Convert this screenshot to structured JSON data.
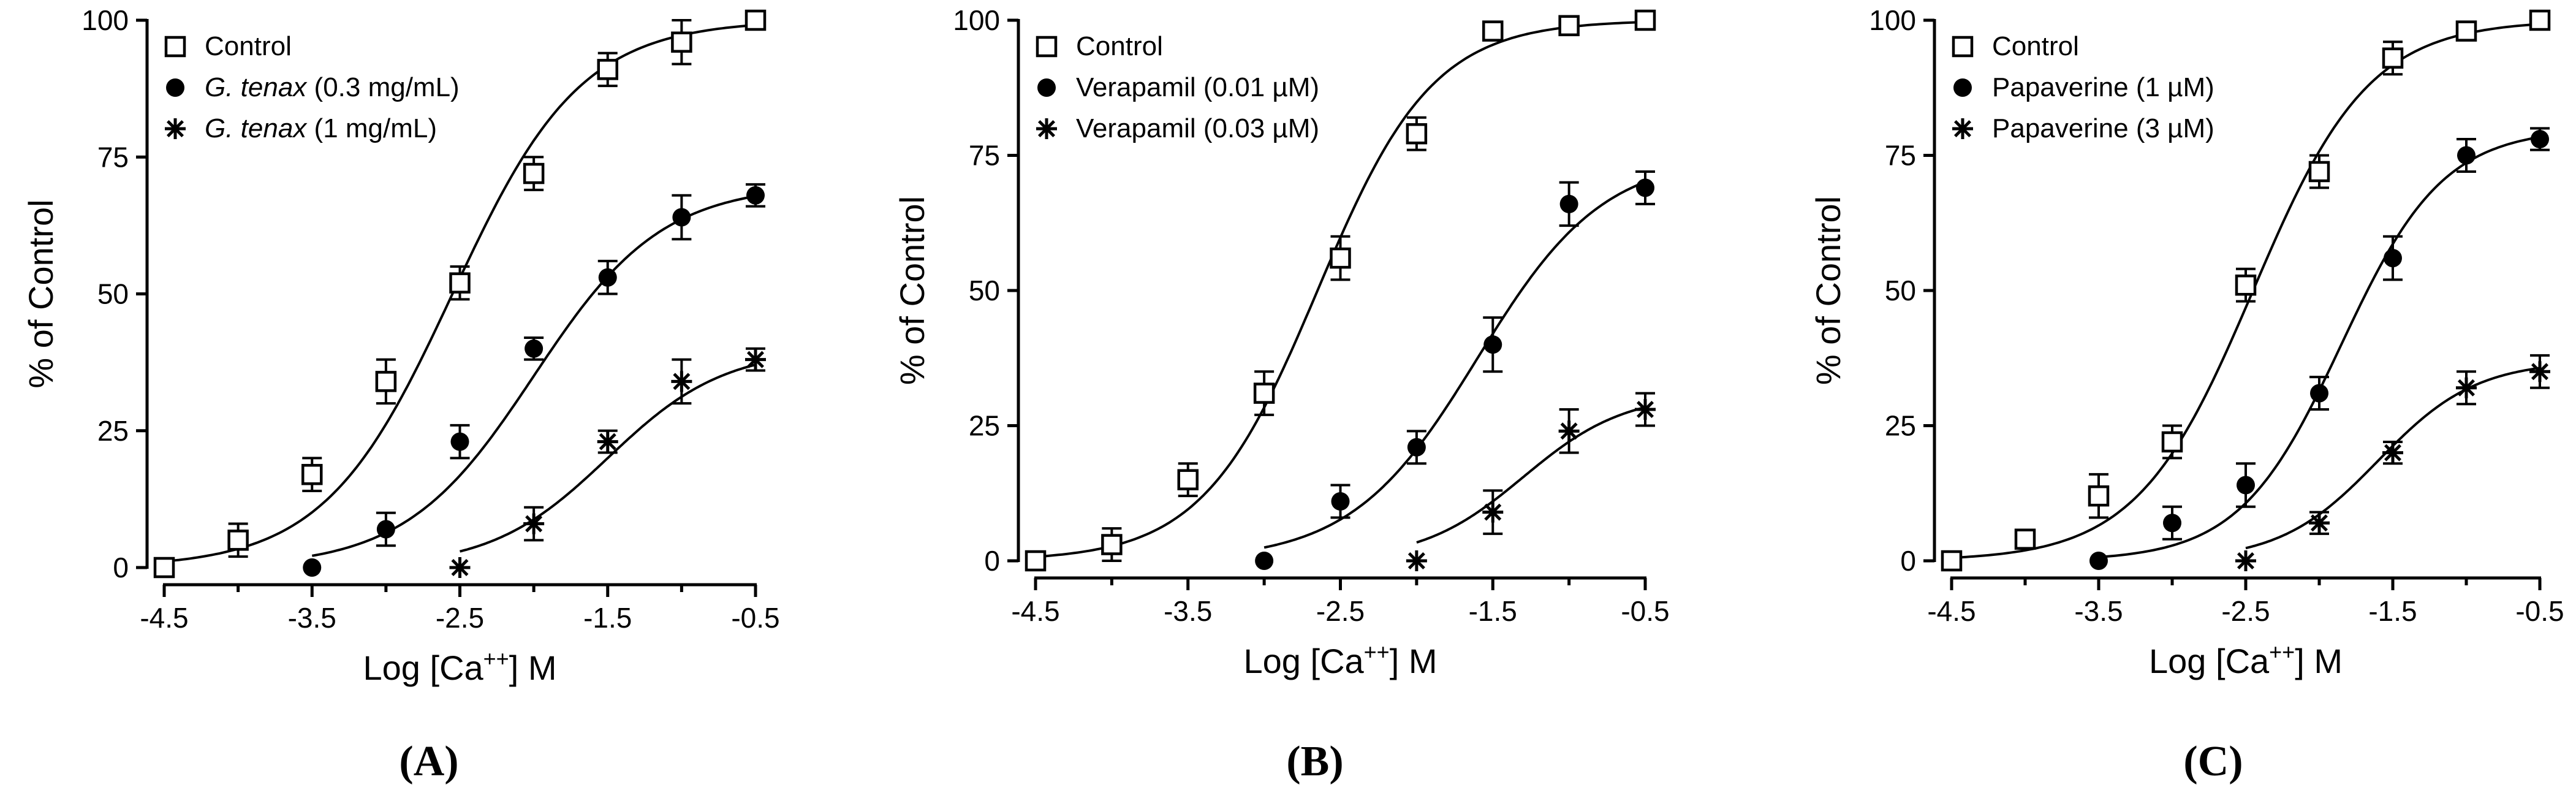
{
  "chart_data": [
    {
      "type": "scatter",
      "panel_label": "(A)",
      "xlabel": "Log [Ca",
      "xlabel_sup": "++",
      "xlabel_suffix": "] M",
      "ylabel": "% of Control",
      "xlim": [
        -4.5,
        -0.5
      ],
      "ylim": [
        0,
        100
      ],
      "xticks": [
        -4.5,
        -3.5,
        -2.5,
        -1.5,
        -0.5
      ],
      "yticks": [
        0,
        25,
        50,
        75,
        100
      ],
      "legend_position": "top-left",
      "series": [
        {
          "name": "Control",
          "legend_parts": [
            [
              "Control",
              ""
            ]
          ],
          "marker": "open-square",
          "x": [
            -4.5,
            -4,
            -3.5,
            -3,
            -2.5,
            -2,
            -1.5,
            -1,
            -0.5
          ],
          "y": [
            0,
            5,
            17,
            34,
            52,
            72,
            91,
            96,
            100
          ],
          "err": [
            0,
            3,
            3,
            4,
            3,
            3,
            3,
            4,
            0
          ],
          "fit": {
            "top": 100,
            "logec50": -2.55,
            "hill": 1.0
          }
        },
        {
          "name": "G. tenax (0.3 mg/mL)",
          "legend_parts": [
            [
              "G. tenax",
              "italic"
            ],
            [
              " (0.3 mg/mL)",
              ""
            ]
          ],
          "marker": "filled-circle",
          "x": [
            -3.5,
            -3,
            -2.5,
            -2,
            -1.5,
            -1,
            -0.5
          ],
          "y": [
            0,
            7,
            23,
            40,
            53,
            64,
            68
          ],
          "err": [
            0,
            3,
            3,
            2,
            3,
            4,
            2
          ],
          "fit": {
            "top": 70,
            "logec50": -2.0,
            "hill": 1.0
          }
        },
        {
          "name": "G. tenax (1 mg/mL)",
          "legend_parts": [
            [
              "G. tenax",
              "italic"
            ],
            [
              " (1 mg/mL)",
              ""
            ]
          ],
          "marker": "asterisk",
          "x": [
            -2.5,
            -2,
            -1.5,
            -1,
            -0.5
          ],
          "y": [
            0,
            8,
            23,
            34,
            38
          ],
          "err": [
            0,
            3,
            2,
            4,
            2
          ],
          "fit": {
            "top": 40,
            "logec50": -1.5,
            "hill": 1.1
          }
        }
      ]
    },
    {
      "type": "scatter",
      "panel_label": "(B)",
      "xlabel": "Log [Ca",
      "xlabel_sup": "++",
      "xlabel_suffix": "] M",
      "ylabel": "% of Control",
      "xlim": [
        -4.5,
        -0.5
      ],
      "ylim": [
        0,
        100
      ],
      "xticks": [
        -4.5,
        -3.5,
        -2.5,
        -1.5,
        -0.5
      ],
      "yticks": [
        0,
        25,
        50,
        75,
        100
      ],
      "legend_position": "top-left",
      "series": [
        {
          "name": "Control",
          "legend_parts": [
            [
              "Control",
              ""
            ]
          ],
          "marker": "open-square",
          "x": [
            -4.5,
            -4,
            -3.5,
            -3,
            -2.5,
            -2,
            -1.5,
            -1,
            -0.5
          ],
          "y": [
            0,
            3,
            15,
            31,
            56,
            79,
            98,
            99,
            100
          ],
          "err": [
            0,
            3,
            3,
            4,
            4,
            3,
            0,
            0,
            0
          ],
          "fit": {
            "top": 100,
            "logec50": -2.65,
            "hill": 1.15
          }
        },
        {
          "name": "Verapamil (0.01 µM)",
          "legend_parts": [
            [
              "Verapamil (0.01 µM)",
              ""
            ]
          ],
          "marker": "filled-circle",
          "x": [
            -3,
            -2.5,
            -2,
            -1.5,
            -1,
            -0.5
          ],
          "y": [
            0,
            11,
            21,
            40,
            66,
            69
          ],
          "err": [
            0,
            3,
            3,
            5,
            4,
            3
          ],
          "fit": {
            "top": 75,
            "logec50": -1.6,
            "hill": 1.05
          }
        },
        {
          "name": "Verapamil (0.03 µM)",
          "legend_parts": [
            [
              "Verapamil (0.03 µM)",
              ""
            ]
          ],
          "marker": "asterisk",
          "x": [
            -2,
            -1.5,
            -1,
            -0.5
          ],
          "y": [
            0,
            9,
            24,
            28
          ],
          "err": [
            0,
            4,
            4,
            3
          ],
          "fit": {
            "top": 31,
            "logec50": -1.3,
            "hill": 1.3
          }
        }
      ]
    },
    {
      "type": "scatter",
      "panel_label": "(C)",
      "xlabel": "Log [Ca",
      "xlabel_sup": "++",
      "xlabel_suffix": "] M",
      "ylabel": "% of Control",
      "xlim": [
        -4.5,
        -0.5
      ],
      "ylim": [
        0,
        100
      ],
      "xticks": [
        -4.5,
        -3.5,
        -2.5,
        -1.5,
        -0.5
      ],
      "yticks": [
        0,
        25,
        50,
        75,
        100
      ],
      "legend_position": "top-left",
      "series": [
        {
          "name": "Control",
          "legend_parts": [
            [
              "Control",
              ""
            ]
          ],
          "marker": "open-square",
          "x": [
            -4.5,
            -4,
            -3.5,
            -3,
            -2.5,
            -2,
            -1.5,
            -1,
            -0.5
          ],
          "y": [
            0,
            4,
            12,
            22,
            51,
            72,
            93,
            98,
            100
          ],
          "err": [
            0,
            0,
            4,
            3,
            3,
            3,
            3,
            0,
            0
          ],
          "fit": {
            "top": 100,
            "logec50": -2.45,
            "hill": 1.1
          }
        },
        {
          "name": "Papaverine (1 µM)",
          "legend_parts": [
            [
              "Papaverine (1 µM)",
              ""
            ]
          ],
          "marker": "filled-circle",
          "x": [
            -3.5,
            -3,
            -2.5,
            -2,
            -1.5,
            -1,
            -0.5
          ],
          "y": [
            0,
            7,
            14,
            31,
            56,
            75,
            78
          ],
          "err": [
            0,
            3,
            4,
            3,
            4,
            3,
            2
          ],
          "fit": {
            "top": 80,
            "logec50": -1.85,
            "hill": 1.25
          }
        },
        {
          "name": "Papaverine (3 µM)",
          "legend_parts": [
            [
              "Papaverine (3 µM)",
              ""
            ]
          ],
          "marker": "asterisk",
          "x": [
            -2.5,
            -2,
            -1.5,
            -1,
            -0.5
          ],
          "y": [
            0,
            7,
            20,
            32,
            35
          ],
          "err": [
            0,
            2,
            2,
            3,
            3
          ],
          "fit": {
            "top": 37,
            "logec50": -1.6,
            "hill": 1.3
          }
        }
      ]
    }
  ]
}
